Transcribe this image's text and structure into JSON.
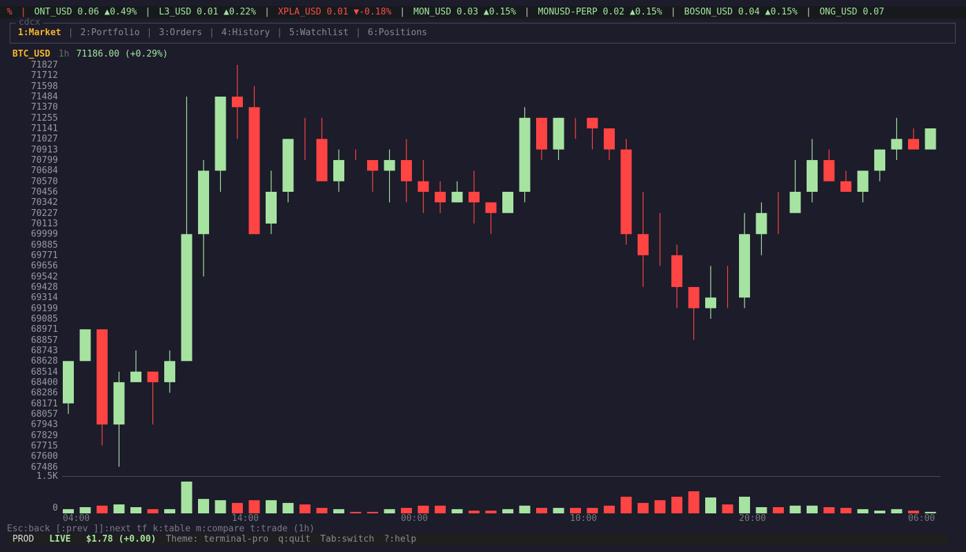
{
  "ticker": [
    {
      "symbol": "%",
      "price": "",
      "change": "",
      "dir": "dn",
      "lead": true
    },
    {
      "symbol": "ONT_USD",
      "price": "0.06",
      "change": "▲0.49%",
      "dir": "up"
    },
    {
      "symbol": "L3_USD",
      "price": "0.01",
      "change": "▲0.22%",
      "dir": "up"
    },
    {
      "symbol": "XPLA_USD",
      "price": "0.01",
      "change": "▼-0.18%",
      "dir": "dn"
    },
    {
      "symbol": "MON_USD",
      "price": "0.03",
      "change": "▲0.15%",
      "dir": "up"
    },
    {
      "symbol": "MONUSD-PERP",
      "price": "0.02",
      "change": "▲0.15%",
      "dir": "up"
    },
    {
      "symbol": "BOSON_USD",
      "price": "0.04",
      "change": "▲0.15%",
      "dir": "up"
    },
    {
      "symbol": "ONG_USD",
      "price": "0.07",
      "change": "",
      "dir": "up"
    }
  ],
  "app": {
    "title": "cdcx"
  },
  "tabs": [
    {
      "label": "1:Market",
      "active": true
    },
    {
      "label": "2:Portfolio",
      "active": false
    },
    {
      "label": "3:Orders",
      "active": false
    },
    {
      "label": "4:History",
      "active": false
    },
    {
      "label": "5:Watchlist",
      "active": false
    },
    {
      "label": "6:Positions",
      "active": false
    }
  ],
  "chart_header": {
    "symbol": "BTC_USD",
    "timeframe": "1h",
    "price": "71186.00 (+0.29%)"
  },
  "colors": {
    "up": "#a6e3a1",
    "down": "#ff4444",
    "accent": "#f4b52a",
    "bg": "#1c1c2a"
  },
  "chart_data": {
    "type": "candlestick",
    "title": "BTC_USD 1h",
    "y_ticks": [
      "71827",
      "71712",
      "71598",
      "71484",
      "71370",
      "71255",
      "71141",
      "71027",
      "70913",
      "70799",
      "70684",
      "70570",
      "70456",
      "70342",
      "70227",
      "70113",
      "69999",
      "69885",
      "69771",
      "69656",
      "69542",
      "69428",
      "69314",
      "69199",
      "69085",
      "68971",
      "68857",
      "68743",
      "68628",
      "68514",
      "68400",
      "68286",
      "68171",
      "68057",
      "67943",
      "67829",
      "67715",
      "67600",
      "67486"
    ],
    "ylim": [
      67486,
      71827
    ],
    "x_ticks": [
      "04:00",
      "14:00",
      "00:00",
      "10:00",
      "20:00",
      "06:00"
    ],
    "volume_ticks": [
      "1.5K",
      "0"
    ],
    "candles": [
      [
        68171,
        68628,
        68628,
        68057
      ],
      [
        68628,
        68971,
        68971,
        68628
      ],
      [
        68971,
        67943,
        68971,
        67715
      ],
      [
        67943,
        68400,
        68514,
        67486
      ],
      [
        68400,
        68514,
        68743,
        68400
      ],
      [
        68514,
        68400,
        68514,
        67943
      ],
      [
        68400,
        68628,
        68743,
        68286
      ],
      [
        68628,
        69999,
        71484,
        68628
      ],
      [
        69999,
        70684,
        70799,
        69542
      ],
      [
        70684,
        71484,
        71484,
        70456
      ],
      [
        71484,
        71370,
        71827,
        71027
      ],
      [
        71370,
        69999,
        71598,
        69999
      ],
      [
        70113,
        70456,
        70684,
        69999
      ],
      [
        70456,
        71027,
        71027,
        70342
      ],
      [
        71027,
        71027,
        71255,
        70799
      ],
      [
        71027,
        70570,
        71255,
        70570
      ],
      [
        70570,
        70799,
        70913,
        70456
      ],
      [
        70850,
        70850,
        70913,
        70799
      ],
      [
        70799,
        70684,
        70799,
        70456
      ],
      [
        70684,
        70799,
        70913,
        70342
      ],
      [
        70799,
        70570,
        71027,
        70342
      ],
      [
        70570,
        70456,
        70799,
        70227
      ],
      [
        70456,
        70342,
        70570,
        70227
      ],
      [
        70342,
        70456,
        70570,
        70342
      ],
      [
        70456,
        70342,
        70684,
        70113
      ],
      [
        70342,
        70227,
        70342,
        69999
      ],
      [
        70227,
        70456,
        70456,
        70227
      ],
      [
        70456,
        71255,
        71370,
        70342
      ],
      [
        71255,
        70913,
        71255,
        70799
      ],
      [
        70913,
        71255,
        71255,
        70799
      ],
      [
        71141,
        71141,
        71255,
        71027
      ],
      [
        71255,
        71141,
        71255,
        70913
      ],
      [
        71141,
        70913,
        71141,
        70799
      ],
      [
        70913,
        69999,
        71027,
        69885
      ],
      [
        69999,
        69771,
        70456,
        69428
      ],
      [
        69885,
        69885,
        70227,
        69656
      ],
      [
        69771,
        69428,
        69885,
        69199
      ],
      [
        69428,
        69199,
        69428,
        68857
      ],
      [
        69199,
        69314,
        69656,
        69085
      ],
      [
        69428,
        69428,
        69656,
        69199
      ],
      [
        69314,
        69999,
        70227,
        69199
      ],
      [
        69999,
        70227,
        70342,
        69771
      ],
      [
        70227,
        70227,
        70456,
        69999
      ],
      [
        70227,
        70456,
        70799,
        70227
      ],
      [
        70456,
        70799,
        71027,
        70342
      ],
      [
        70799,
        70570,
        70913,
        70570
      ],
      [
        70570,
        70456,
        70684,
        70456
      ],
      [
        70456,
        70684,
        70684,
        70342
      ],
      [
        70684,
        70913,
        70913,
        70570
      ],
      [
        70913,
        71027,
        71255,
        70799
      ],
      [
        71027,
        70913,
        71141,
        70913
      ],
      [
        70913,
        71141,
        71141,
        70913
      ]
    ],
    "doji_colors": {
      "14": "down",
      "17": "down",
      "30": "down",
      "35": "down",
      "39": "down",
      "42": "down"
    },
    "volume": [
      170,
      250,
      310,
      360,
      250,
      170,
      170,
      1280,
      580,
      530,
      420,
      530,
      530,
      420,
      360,
      220,
      170,
      60,
      60,
      170,
      220,
      310,
      310,
      170,
      110,
      110,
      170,
      310,
      220,
      220,
      220,
      220,
      310,
      670,
      420,
      530,
      670,
      890,
      640,
      360,
      670,
      250,
      250,
      310,
      310,
      250,
      220,
      170,
      110,
      170,
      110,
      60
    ]
  },
  "help_line": "Esc:back  [:prev ]]:next tf  k:table  m:compare  t:trade  (1h)",
  "status": {
    "env": "PROD",
    "mode": "LIVE",
    "balance": "$1.78 (+0.00)",
    "theme": "Theme: terminal-pro",
    "quit": "q:quit",
    "switch": "Tab:switch",
    "help": "?:help"
  }
}
